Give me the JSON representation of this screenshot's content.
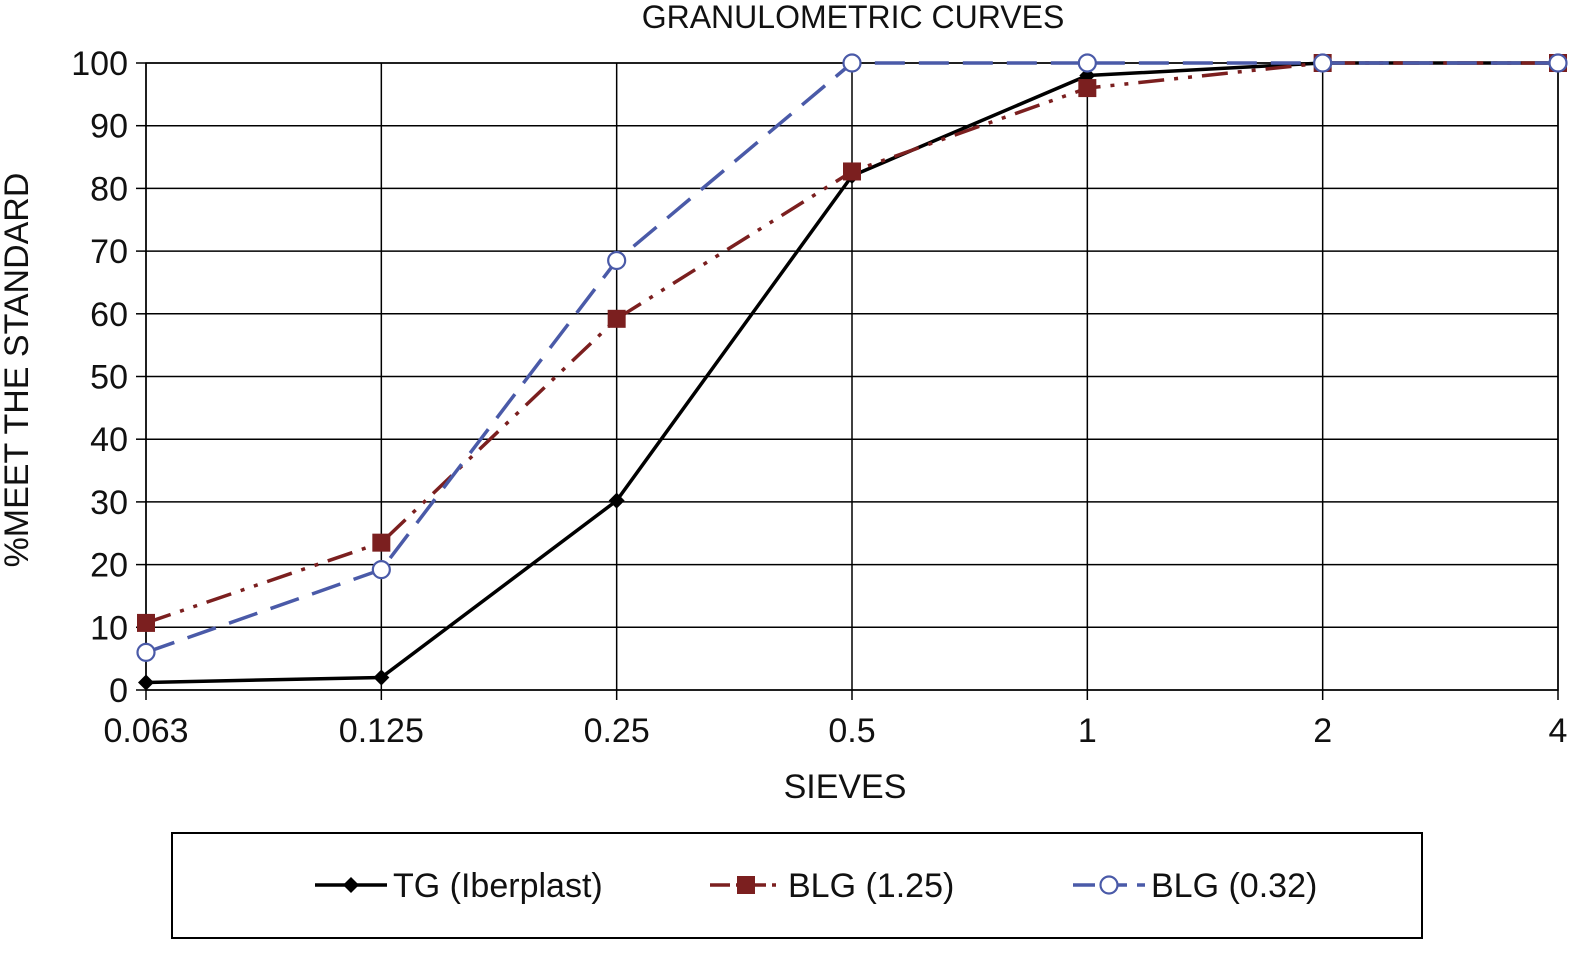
{
  "chart_data": {
    "type": "line",
    "title": "GRANULOMETRIC CURVES",
    "xlabel": "SIEVES",
    "ylabel": "%MEET THE STANDARD",
    "x_scale": "categorical",
    "categories": [
      "0.063",
      "0.125",
      "0.25",
      "0.5",
      "1",
      "2",
      "4"
    ],
    "ylim": [
      0,
      100
    ],
    "yticks": [
      0,
      10,
      20,
      30,
      40,
      50,
      60,
      70,
      80,
      90,
      100
    ],
    "grid": true,
    "legend_position": "bottom",
    "series": [
      {
        "name": "TG (Iberplast)",
        "values": [
          1.2,
          2,
          30.2,
          82,
          98,
          100,
          100
        ],
        "color": "#000000",
        "marker": "diamond",
        "line_style": "solid"
      },
      {
        "name": "BLG (1.25)",
        "values": [
          10.7,
          23.5,
          59.2,
          82.7,
          96,
          100,
          100
        ],
        "color": "#7b1f1f",
        "marker": "square",
        "line_style": "dash-dot-dot"
      },
      {
        "name": "BLG (0.32)",
        "values": [
          6,
          19.2,
          68.5,
          100,
          100,
          100,
          100
        ],
        "color": "#4a5aa8",
        "marker": "open-circle",
        "line_style": "dashed"
      }
    ]
  }
}
